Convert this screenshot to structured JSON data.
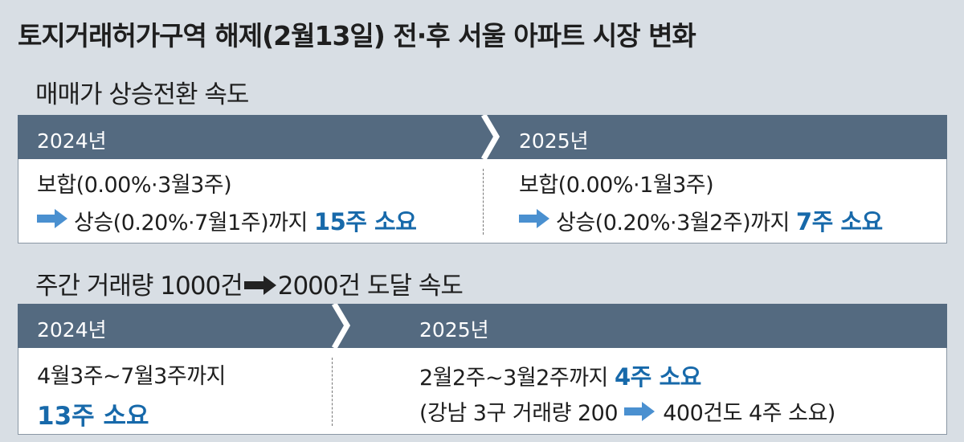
{
  "title": "토지거래허가구역 해제(2월13일) 전·후 서울 아파트 시장 변화",
  "sections": [
    {
      "heading": "매매가 상승전환 속도",
      "left": {
        "year": "2024년",
        "line1": "보합(0.00%·3월3주)",
        "line2": "상승(0.20%·7월1주)까지",
        "highlight": "15주 소요"
      },
      "right": {
        "year": "2025년",
        "line1": "보합(0.00%·1월3주)",
        "line2": "상승(0.20%·3월2주)까지",
        "highlight": "7주 소요"
      }
    },
    {
      "heading_before": "주간 거래량 1000건",
      "heading_after": "2000건 도달 속도",
      "left": {
        "year": "2024년",
        "line1": "4월3주~7월3주까지",
        "highlight": "13주 소요"
      },
      "right": {
        "year": "2025년",
        "line1": "2월2주~3월2주까지",
        "highlight": "4주 소요",
        "note_before": "(강남 3구 거래량 200",
        "note_after": "400건도 4주 소요)"
      }
    }
  ]
}
